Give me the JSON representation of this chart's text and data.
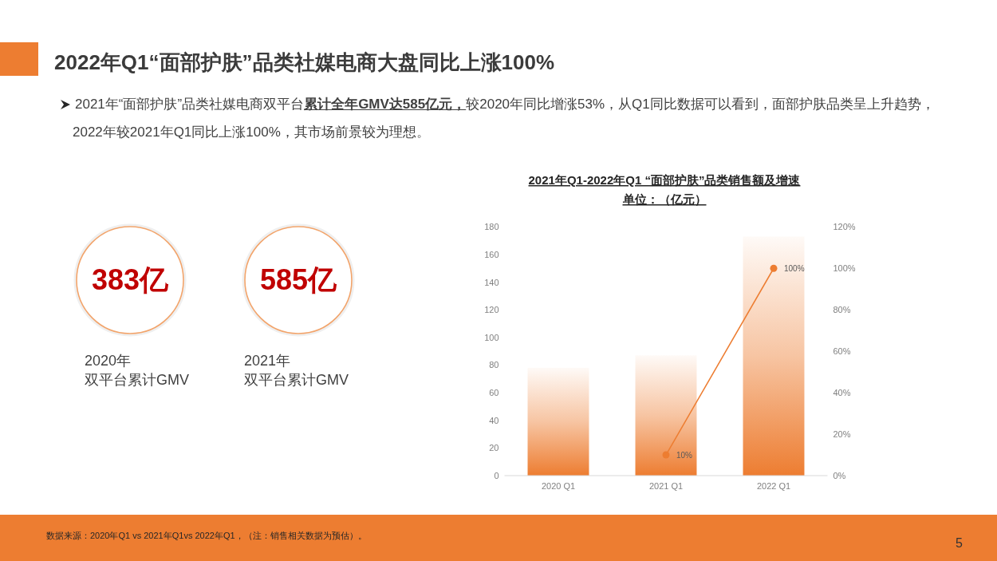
{
  "chart_data": [
    {
      "type": "other",
      "title": "2022年Q1“面部护肤”品类社媒电商大盘同比上涨100%",
      "subtitle": "2021年“面部护肤”品类社媒电商双平台**累计全年GMV达585亿元，**较2020年同比增涨53%，从Q1同比数据可以看到，面部护肤品类呈上升趋势，2022年较2021年Q1同比上涨100%，其市场前景较为理想。",
      "annotations": [
        "383亿",
        "2020年",
        "双平台累计GMV",
        "585亿",
        "2021年",
        "双平台累计GMV",
        "数据来源：2020年Q1 vs 2021年Q1vs 2022年Q1，（注：销售相关数据为预估）。",
        "5"
      ]
    },
    {
      "type": "bar",
      "title": "2021年Q1-2022年Q1 “面部护肤”品类销售额及增速",
      "subtitle": "单位：（亿元）",
      "categories": [
        "2020 Q1",
        "2021 Q1",
        "2022 Q1"
      ],
      "series": [
        {
          "type": "bar",
          "color": "#ed7d31",
          "values": [
            78,
            87,
            173
          ]
        },
        {
          "type": "line",
          "axis": "y2",
          "color": "#ed7d31",
          "values": [
            null,
            10,
            100
          ],
          "value_labels": [
            null,
            "10%",
            "100%"
          ]
        }
      ],
      "ylim": [
        0,
        180
      ],
      "yticks": [
        0,
        20,
        40,
        60,
        80,
        100,
        120,
        140,
        160,
        180
      ],
      "y2lim": [
        0,
        120
      ],
      "y2ticks": [
        {
          "value": 0,
          "label": "0%"
        },
        {
          "value": 20,
          "label": "20%"
        },
        {
          "value": 40,
          "label": "40%"
        },
        {
          "value": 60,
          "label": "60%"
        },
        {
          "value": 80,
          "label": "80%"
        },
        {
          "value": 100,
          "label": "100%"
        },
        {
          "value": 120,
          "label": "120%"
        }
      ],
      "marker": "circle",
      "line_style": "solid"
    }
  ]
}
